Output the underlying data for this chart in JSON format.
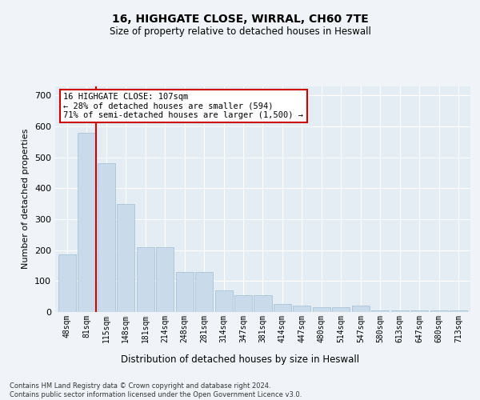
{
  "title1": "16, HIGHGATE CLOSE, WIRRAL, CH60 7TE",
  "title2": "Size of property relative to detached houses in Heswall",
  "xlabel": "Distribution of detached houses by size in Heswall",
  "ylabel": "Number of detached properties",
  "categories": [
    "48sqm",
    "81sqm",
    "115sqm",
    "148sqm",
    "181sqm",
    "214sqm",
    "248sqm",
    "281sqm",
    "314sqm",
    "347sqm",
    "381sqm",
    "414sqm",
    "447sqm",
    "480sqm",
    "514sqm",
    "547sqm",
    "580sqm",
    "613sqm",
    "647sqm",
    "680sqm",
    "713sqm"
  ],
  "values": [
    185,
    580,
    480,
    350,
    210,
    210,
    130,
    130,
    70,
    55,
    55,
    25,
    20,
    15,
    15,
    20,
    5,
    5,
    5,
    5,
    5
  ],
  "bar_color": "#c9daea",
  "bar_edge_color": "#aac4d8",
  "vline_color": "#cc0000",
  "annotation_text": "16 HIGHGATE CLOSE: 107sqm\n← 28% of detached houses are smaller (594)\n71% of semi-detached houses are larger (1,500) →",
  "annotation_box_color": "#ffffff",
  "annotation_box_edge": "#cc0000",
  "ylim": [
    0,
    730
  ],
  "yticks": [
    0,
    100,
    200,
    300,
    400,
    500,
    600,
    700
  ],
  "footer": "Contains HM Land Registry data © Crown copyright and database right 2024.\nContains public sector information licensed under the Open Government Licence v3.0.",
  "background_color": "#f0f4f8",
  "plot_bg_color": "#e4ecf4",
  "grid_color": "#ffffff",
  "vline_x_index": 1.5
}
